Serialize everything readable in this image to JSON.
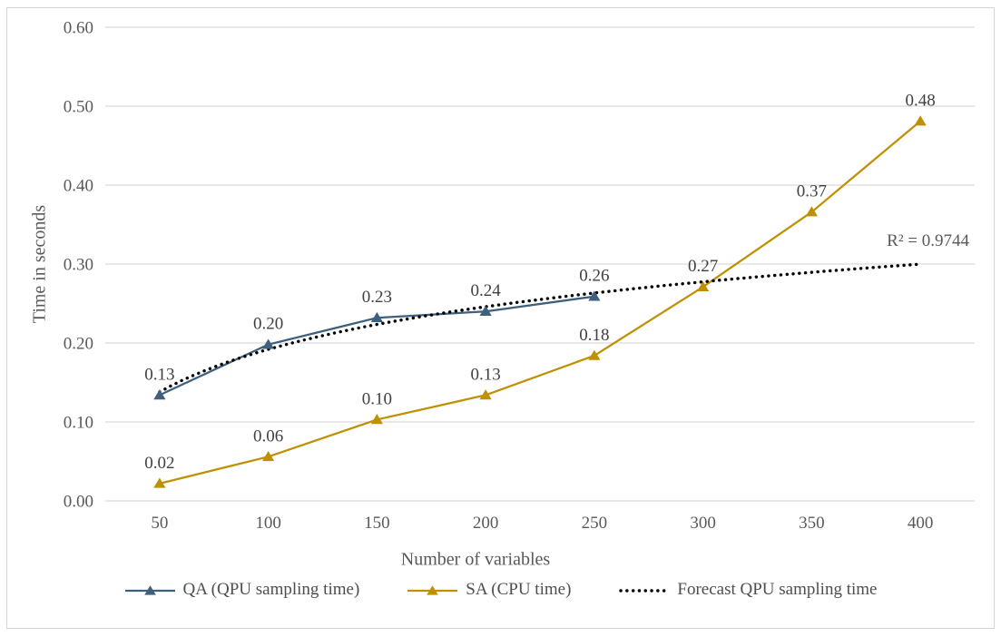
{
  "figure": {
    "background": "#FFFFFF",
    "border_color": "#D5D5D5"
  },
  "chart_data": {
    "type": "line",
    "title": "",
    "xlabel": "Number of variables",
    "ylabel": "Time in seconds",
    "x_categories": [
      50,
      100,
      150,
      200,
      250,
      300,
      350,
      400
    ],
    "y_ticks": [
      "0.00",
      "0.10",
      "0.20",
      "0.30",
      "0.40",
      "0.50",
      "0.60"
    ],
    "ylim": [
      0,
      0.6
    ],
    "grid": "horizontal",
    "grid_color": "#D9D9D9",
    "tick_color": "#595959",
    "data_label_color": "#404040",
    "legend_position": "bottom",
    "series": [
      {
        "name": "QA (QPU sampling time)",
        "color": "#3E5F7D",
        "marker": "triangle",
        "x": [
          50,
          100,
          150,
          200,
          250
        ],
        "values": [
          0.134,
          0.198,
          0.232,
          0.24,
          0.259
        ],
        "point_labels": [
          "0.13",
          "0.20",
          "0.23",
          "0.24",
          "0.26"
        ]
      },
      {
        "name": "SA (CPU time)",
        "color": "#BF9000",
        "marker": "triangle",
        "x": [
          50,
          100,
          150,
          200,
          250,
          300,
          350,
          400
        ],
        "values": [
          0.022,
          0.056,
          0.103,
          0.134,
          0.184,
          0.271,
          0.366,
          0.481
        ],
        "point_labels": [
          "0.02",
          "0.06",
          "0.10",
          "0.13",
          "0.18",
          "0.27",
          "0.37",
          "0.48"
        ]
      }
    ],
    "trendline": {
      "name": "Forecast QPU sampling time",
      "color": "#000000",
      "style": "dotted",
      "fit": "logarithmic",
      "a": 0.0779,
      "b": -0.1668,
      "x_range": [
        50,
        400
      ],
      "r_squared_label": "R² = 0.9744"
    }
  }
}
